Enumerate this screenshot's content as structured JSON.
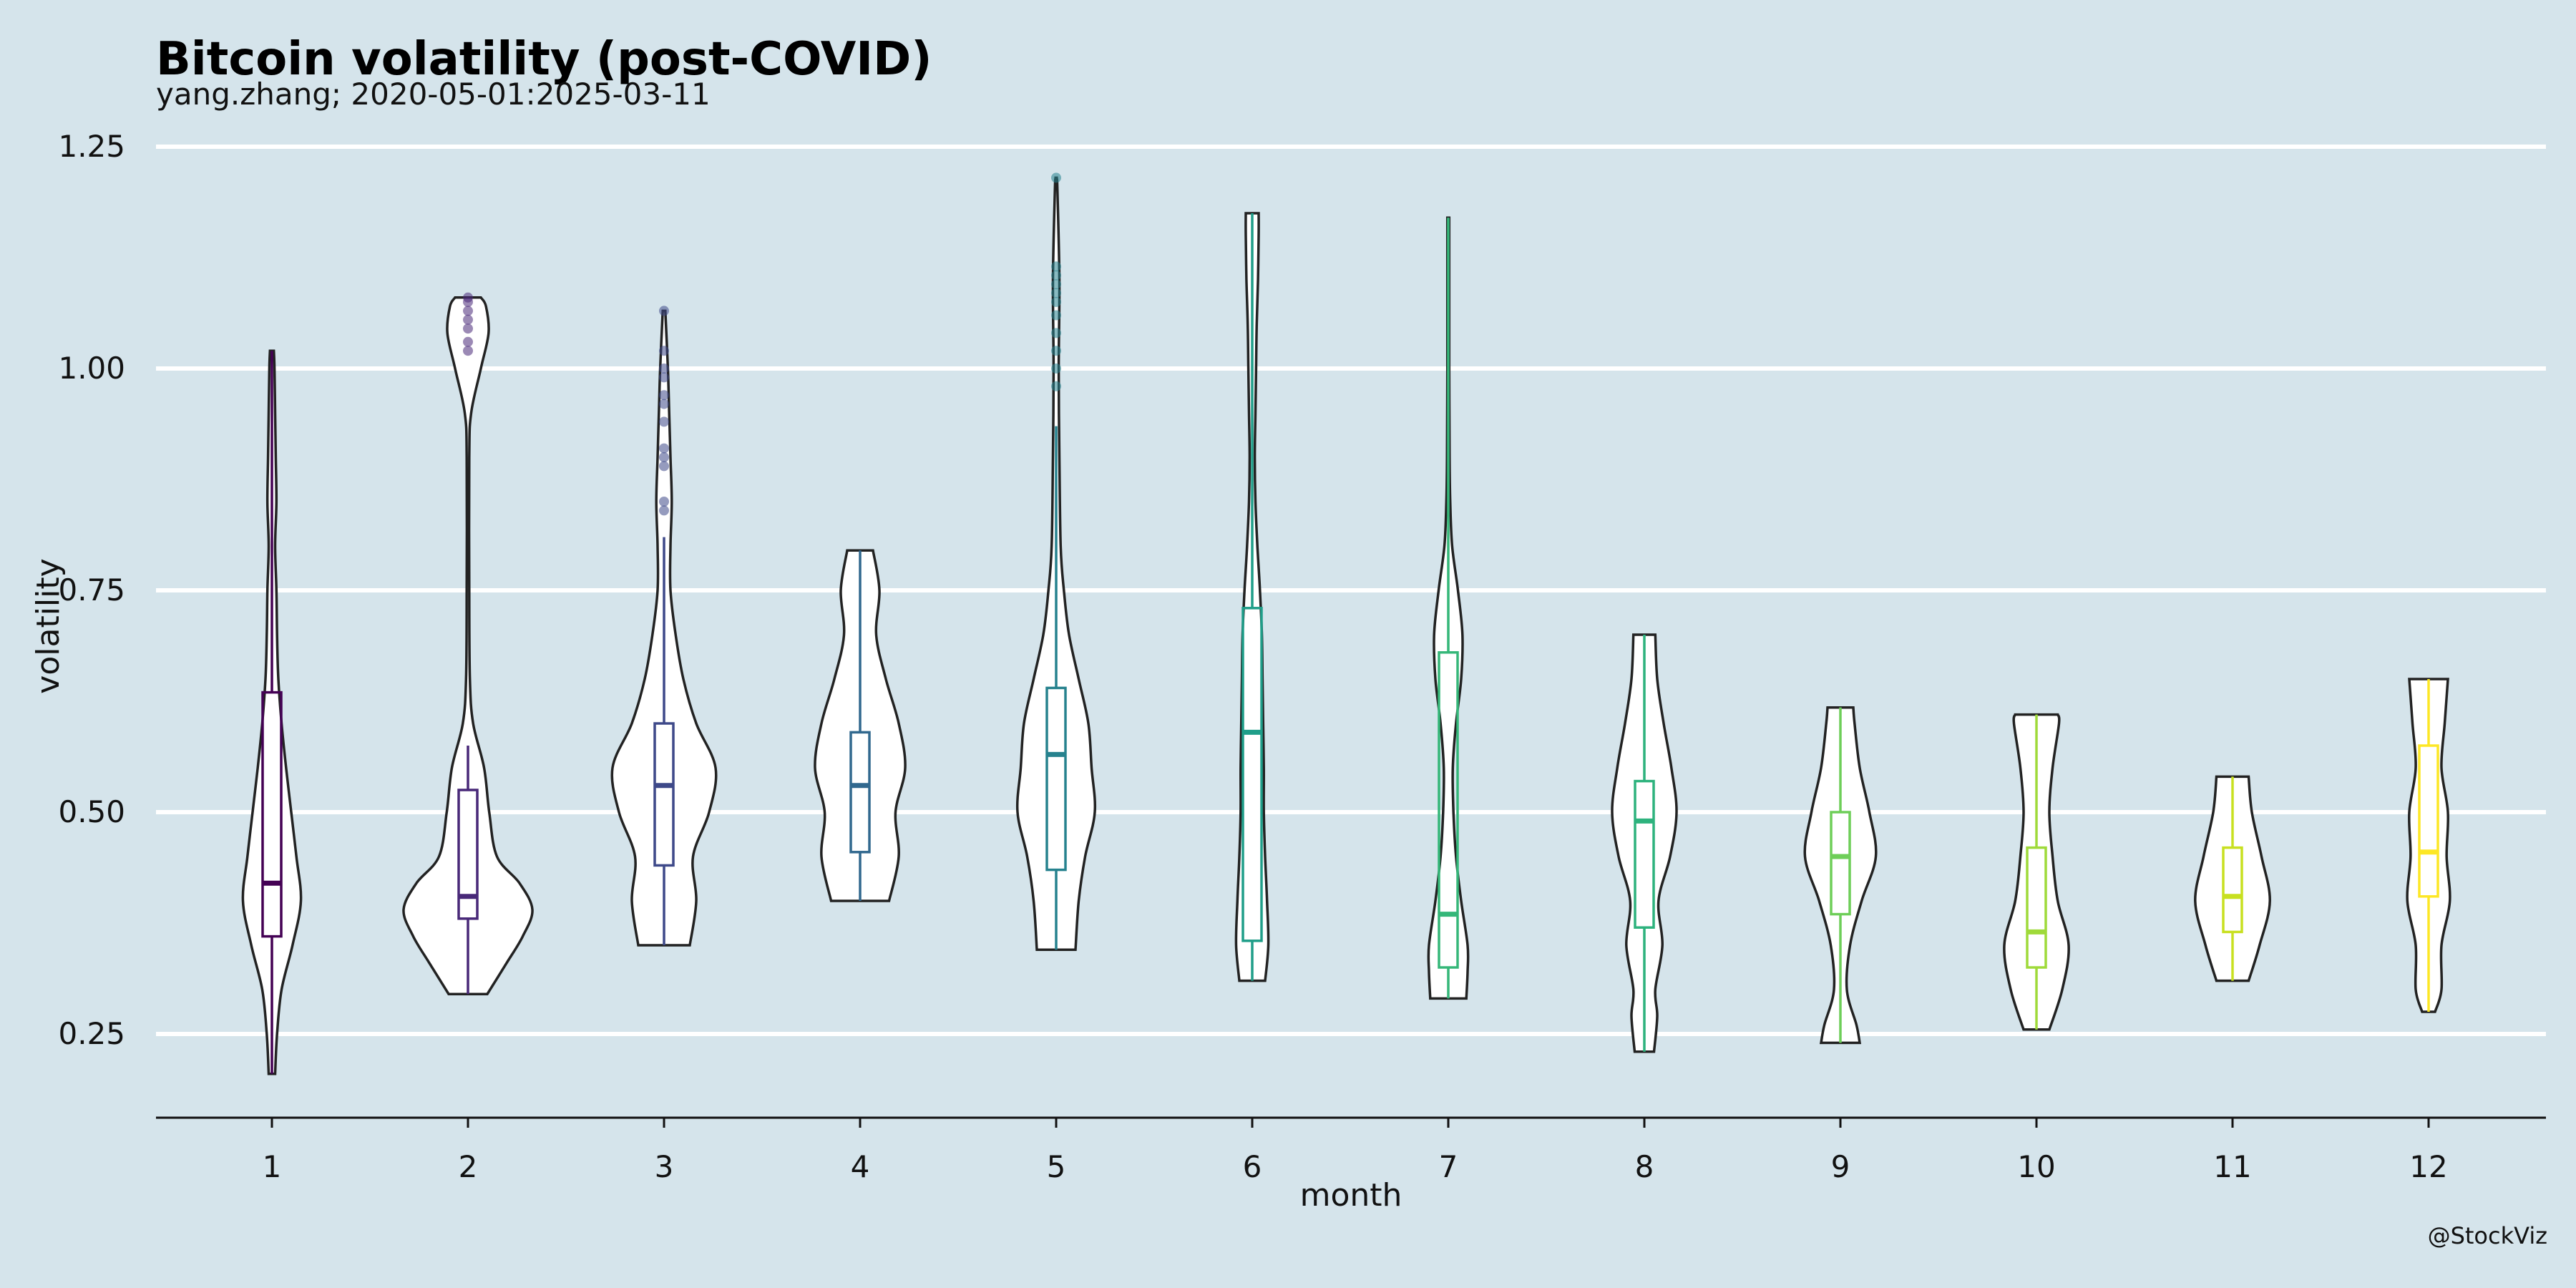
{
  "chart_data": {
    "type": "violin",
    "title": "Bitcoin volatility (post-COVID)",
    "subtitle": "yang.zhang; 2020-05-01:2025-03-11",
    "xlabel": "month",
    "ylabel": "volatility",
    "caption": "@StockViz",
    "ylim": [
      0.155,
      1.28
    ],
    "yticks": [
      "0.25",
      "0.50",
      "0.75",
      "1.00",
      "1.25"
    ],
    "categories": [
      "1",
      "2",
      "3",
      "4",
      "5",
      "6",
      "7",
      "8",
      "9",
      "10",
      "11",
      "12"
    ],
    "grid": true,
    "legend": "none",
    "series": [
      {
        "month": "1",
        "color": "#440154",
        "min": 0.205,
        "max": 1.02,
        "q1": 0.36,
        "median": 0.42,
        "q3": 0.635,
        "whisker_low": 0.205,
        "whisker_high": 1.02,
        "outliers": [],
        "density": [
          [
            0.205,
            0.05
          ],
          [
            0.25,
            0.08
          ],
          [
            0.3,
            0.15
          ],
          [
            0.35,
            0.32
          ],
          [
            0.4,
            0.45
          ],
          [
            0.45,
            0.38
          ],
          [
            0.5,
            0.3
          ],
          [
            0.55,
            0.22
          ],
          [
            0.6,
            0.15
          ],
          [
            0.65,
            0.1
          ],
          [
            0.7,
            0.08
          ],
          [
            0.75,
            0.07
          ],
          [
            0.8,
            0.05
          ],
          [
            0.85,
            0.07
          ],
          [
            0.9,
            0.06
          ],
          [
            0.95,
            0.05
          ],
          [
            1.0,
            0.04
          ],
          [
            1.02,
            0.03
          ]
        ]
      },
      {
        "month": "2",
        "color": "#482878",
        "min": 0.295,
        "max": 1.08,
        "q1": 0.38,
        "median": 0.405,
        "q3": 0.525,
        "whisker_low": 0.295,
        "whisker_high": 0.575,
        "outliers": [
          1.02,
          1.03,
          1.045,
          1.055,
          1.065,
          1.075,
          1.08
        ],
        "density": [
          [
            0.295,
            0.3
          ],
          [
            0.33,
            0.6
          ],
          [
            0.36,
            0.85
          ],
          [
            0.39,
            1.0
          ],
          [
            0.42,
            0.8
          ],
          [
            0.45,
            0.45
          ],
          [
            0.5,
            0.33
          ],
          [
            0.55,
            0.25
          ],
          [
            0.6,
            0.08
          ],
          [
            0.65,
            0.03
          ],
          [
            0.75,
            0.02
          ],
          [
            0.9,
            0.02
          ],
          [
            0.95,
            0.05
          ],
          [
            1.0,
            0.2
          ],
          [
            1.04,
            0.32
          ],
          [
            1.07,
            0.28
          ],
          [
            1.08,
            0.2
          ]
        ]
      },
      {
        "month": "3",
        "color": "#3e4989",
        "min": 0.35,
        "max": 1.065,
        "q1": 0.44,
        "median": 0.53,
        "q3": 0.6,
        "whisker_low": 0.35,
        "whisker_high": 0.81,
        "outliers": [
          0.84,
          0.85,
          0.89,
          0.9,
          0.91,
          0.94,
          0.96,
          0.97,
          0.99,
          1.0,
          1.02,
          1.065
        ],
        "density": [
          [
            0.35,
            0.4
          ],
          [
            0.4,
            0.5
          ],
          [
            0.45,
            0.45
          ],
          [
            0.5,
            0.7
          ],
          [
            0.55,
            0.8
          ],
          [
            0.6,
            0.5
          ],
          [
            0.65,
            0.3
          ],
          [
            0.7,
            0.18
          ],
          [
            0.75,
            0.1
          ],
          [
            0.8,
            0.1
          ],
          [
            0.85,
            0.12
          ],
          [
            0.9,
            0.1
          ],
          [
            0.95,
            0.08
          ],
          [
            1.0,
            0.06
          ],
          [
            1.065,
            0.02
          ]
        ]
      },
      {
        "month": "4",
        "color": "#31688e",
        "min": 0.4,
        "max": 0.795,
        "q1": 0.455,
        "median": 0.53,
        "q3": 0.59,
        "whisker_low": 0.4,
        "whisker_high": 0.795,
        "outliers": [],
        "density": [
          [
            0.4,
            0.45
          ],
          [
            0.45,
            0.6
          ],
          [
            0.5,
            0.55
          ],
          [
            0.55,
            0.7
          ],
          [
            0.6,
            0.6
          ],
          [
            0.65,
            0.4
          ],
          [
            0.7,
            0.25
          ],
          [
            0.75,
            0.3
          ],
          [
            0.795,
            0.2
          ]
        ]
      },
      {
        "month": "5",
        "color": "#26828e",
        "min": 0.345,
        "max": 1.215,
        "q1": 0.435,
        "median": 0.565,
        "q3": 0.64,
        "whisker_low": 0.345,
        "whisker_high": 0.935,
        "outliers": [
          0.98,
          1.0,
          1.02,
          1.04,
          1.06,
          1.075,
          1.085,
          1.095,
          1.105,
          1.115,
          1.215
        ],
        "density": [
          [
            0.345,
            0.3
          ],
          [
            0.4,
            0.35
          ],
          [
            0.45,
            0.45
          ],
          [
            0.5,
            0.6
          ],
          [
            0.55,
            0.55
          ],
          [
            0.6,
            0.5
          ],
          [
            0.65,
            0.35
          ],
          [
            0.7,
            0.2
          ],
          [
            0.75,
            0.12
          ],
          [
            0.8,
            0.07
          ],
          [
            0.9,
            0.05
          ],
          [
            1.0,
            0.04
          ],
          [
            1.1,
            0.05
          ],
          [
            1.2,
            0.02
          ],
          [
            1.215,
            0.01
          ]
        ]
      },
      {
        "month": "6",
        "color": "#1f9e89",
        "min": 0.31,
        "max": 1.175,
        "q1": 0.355,
        "median": 0.59,
        "q3": 0.73,
        "whisker_low": 0.31,
        "whisker_high": 1.175,
        "outliers": [],
        "density": [
          [
            0.31,
            0.2
          ],
          [
            0.35,
            0.25
          ],
          [
            0.4,
            0.23
          ],
          [
            0.45,
            0.2
          ],
          [
            0.5,
            0.18
          ],
          [
            0.55,
            0.18
          ],
          [
            0.6,
            0.17
          ],
          [
            0.65,
            0.16
          ],
          [
            0.7,
            0.15
          ],
          [
            0.75,
            0.12
          ],
          [
            0.8,
            0.08
          ],
          [
            0.85,
            0.05
          ],
          [
            0.9,
            0.04
          ],
          [
            0.95,
            0.05
          ],
          [
            1.0,
            0.06
          ],
          [
            1.05,
            0.07
          ],
          [
            1.1,
            0.09
          ],
          [
            1.15,
            0.1
          ],
          [
            1.175,
            0.1
          ]
        ]
      },
      {
        "month": "7",
        "color": "#35b779",
        "min": 0.29,
        "max": 1.17,
        "q1": 0.325,
        "median": 0.385,
        "q3": 0.68,
        "whisker_low": 0.29,
        "whisker_high": 1.17,
        "outliers": [],
        "density": [
          [
            0.29,
            0.28
          ],
          [
            0.32,
            0.3
          ],
          [
            0.35,
            0.3
          ],
          [
            0.4,
            0.2
          ],
          [
            0.45,
            0.12
          ],
          [
            0.5,
            0.08
          ],
          [
            0.55,
            0.07
          ],
          [
            0.6,
            0.12
          ],
          [
            0.65,
            0.2
          ],
          [
            0.7,
            0.22
          ],
          [
            0.75,
            0.15
          ],
          [
            0.8,
            0.06
          ],
          [
            0.85,
            0.03
          ],
          [
            0.9,
            0.02
          ],
          [
            1.0,
            0.015
          ],
          [
            1.1,
            0.015
          ],
          [
            1.17,
            0.015
          ]
        ]
      },
      {
        "month": "8",
        "color": "#2db27d",
        "min": 0.23,
        "max": 0.7,
        "q1": 0.37,
        "median": 0.49,
        "q3": 0.535,
        "whisker_low": 0.23,
        "whisker_high": 0.7,
        "outliers": [],
        "density": [
          [
            0.23,
            0.15
          ],
          [
            0.27,
            0.2
          ],
          [
            0.3,
            0.17
          ],
          [
            0.35,
            0.28
          ],
          [
            0.4,
            0.22
          ],
          [
            0.45,
            0.4
          ],
          [
            0.5,
            0.5
          ],
          [
            0.55,
            0.42
          ],
          [
            0.6,
            0.3
          ],
          [
            0.65,
            0.2
          ],
          [
            0.7,
            0.17
          ]
        ]
      },
      {
        "month": "9",
        "color": "#6ece58",
        "min": 0.24,
        "max": 0.618,
        "q1": 0.385,
        "median": 0.45,
        "q3": 0.5,
        "whisker_low": 0.24,
        "whisker_high": 0.618,
        "outliers": [],
        "density": [
          [
            0.24,
            0.3
          ],
          [
            0.26,
            0.25
          ],
          [
            0.3,
            0.1
          ],
          [
            0.35,
            0.15
          ],
          [
            0.4,
            0.33
          ],
          [
            0.45,
            0.55
          ],
          [
            0.5,
            0.45
          ],
          [
            0.55,
            0.3
          ],
          [
            0.6,
            0.22
          ],
          [
            0.618,
            0.2
          ]
        ]
      },
      {
        "month": "10",
        "color": "#9fda3a",
        "min": 0.255,
        "max": 0.61,
        "q1": 0.325,
        "median": 0.365,
        "q3": 0.46,
        "whisker_low": 0.255,
        "whisker_high": 0.61,
        "outliers": [],
        "density": [
          [
            0.255,
            0.2
          ],
          [
            0.3,
            0.4
          ],
          [
            0.35,
            0.5
          ],
          [
            0.4,
            0.33
          ],
          [
            0.45,
            0.25
          ],
          [
            0.5,
            0.2
          ],
          [
            0.55,
            0.25
          ],
          [
            0.6,
            0.35
          ],
          [
            0.61,
            0.33
          ]
        ]
      },
      {
        "month": "11",
        "color": "#c8e020",
        "min": 0.31,
        "max": 0.54,
        "q1": 0.365,
        "median": 0.405,
        "q3": 0.46,
        "whisker_low": 0.31,
        "whisker_high": 0.54,
        "outliers": [],
        "density": [
          [
            0.31,
            0.25
          ],
          [
            0.35,
            0.42
          ],
          [
            0.4,
            0.58
          ],
          [
            0.45,
            0.45
          ],
          [
            0.5,
            0.3
          ],
          [
            0.54,
            0.25
          ]
        ]
      },
      {
        "month": "12",
        "color": "#fde725",
        "min": 0.275,
        "max": 0.65,
        "q1": 0.405,
        "median": 0.455,
        "q3": 0.575,
        "whisker_low": 0.275,
        "whisker_high": 0.65,
        "outliers": [],
        "density": [
          [
            0.275,
            0.1
          ],
          [
            0.3,
            0.2
          ],
          [
            0.35,
            0.2
          ],
          [
            0.4,
            0.33
          ],
          [
            0.45,
            0.28
          ],
          [
            0.5,
            0.3
          ],
          [
            0.55,
            0.2
          ],
          [
            0.6,
            0.25
          ],
          [
            0.65,
            0.3
          ]
        ]
      }
    ]
  }
}
